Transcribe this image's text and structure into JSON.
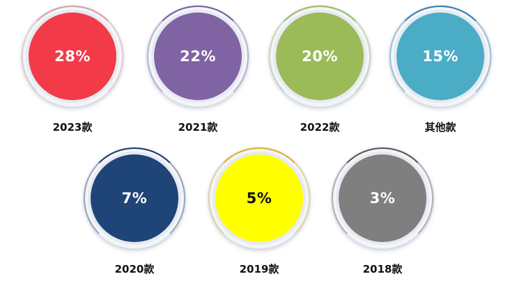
{
  "chart_data": {
    "type": "pie",
    "categories": [
      "2023款",
      "2021款",
      "2022款",
      "其他款",
      "2020款",
      "2019款",
      "2018款"
    ],
    "values": [
      28,
      22,
      20,
      15,
      7,
      5,
      3
    ],
    "display_values": [
      "28%",
      "22%",
      "20%",
      "15%",
      "7%",
      "5%",
      "3%"
    ],
    "unit": "%",
    "colors": [
      "#f23a48",
      "#8063a3",
      "#9bbb59",
      "#4bacc6",
      "#1f4478",
      "#ffff00",
      "#7f7f7f"
    ],
    "value_text_colors": [
      "#ffffff",
      "#ffffff",
      "#ffffff",
      "#ffffff",
      "#ffffff",
      "#111111",
      "#ffffff"
    ],
    "rim_accent_colors": [
      "#d9a0a5",
      "#7a5aa0",
      "#9bbb59",
      "#2e7fb0",
      "#1f3a66",
      "#e0b020",
      "#555555"
    ]
  }
}
